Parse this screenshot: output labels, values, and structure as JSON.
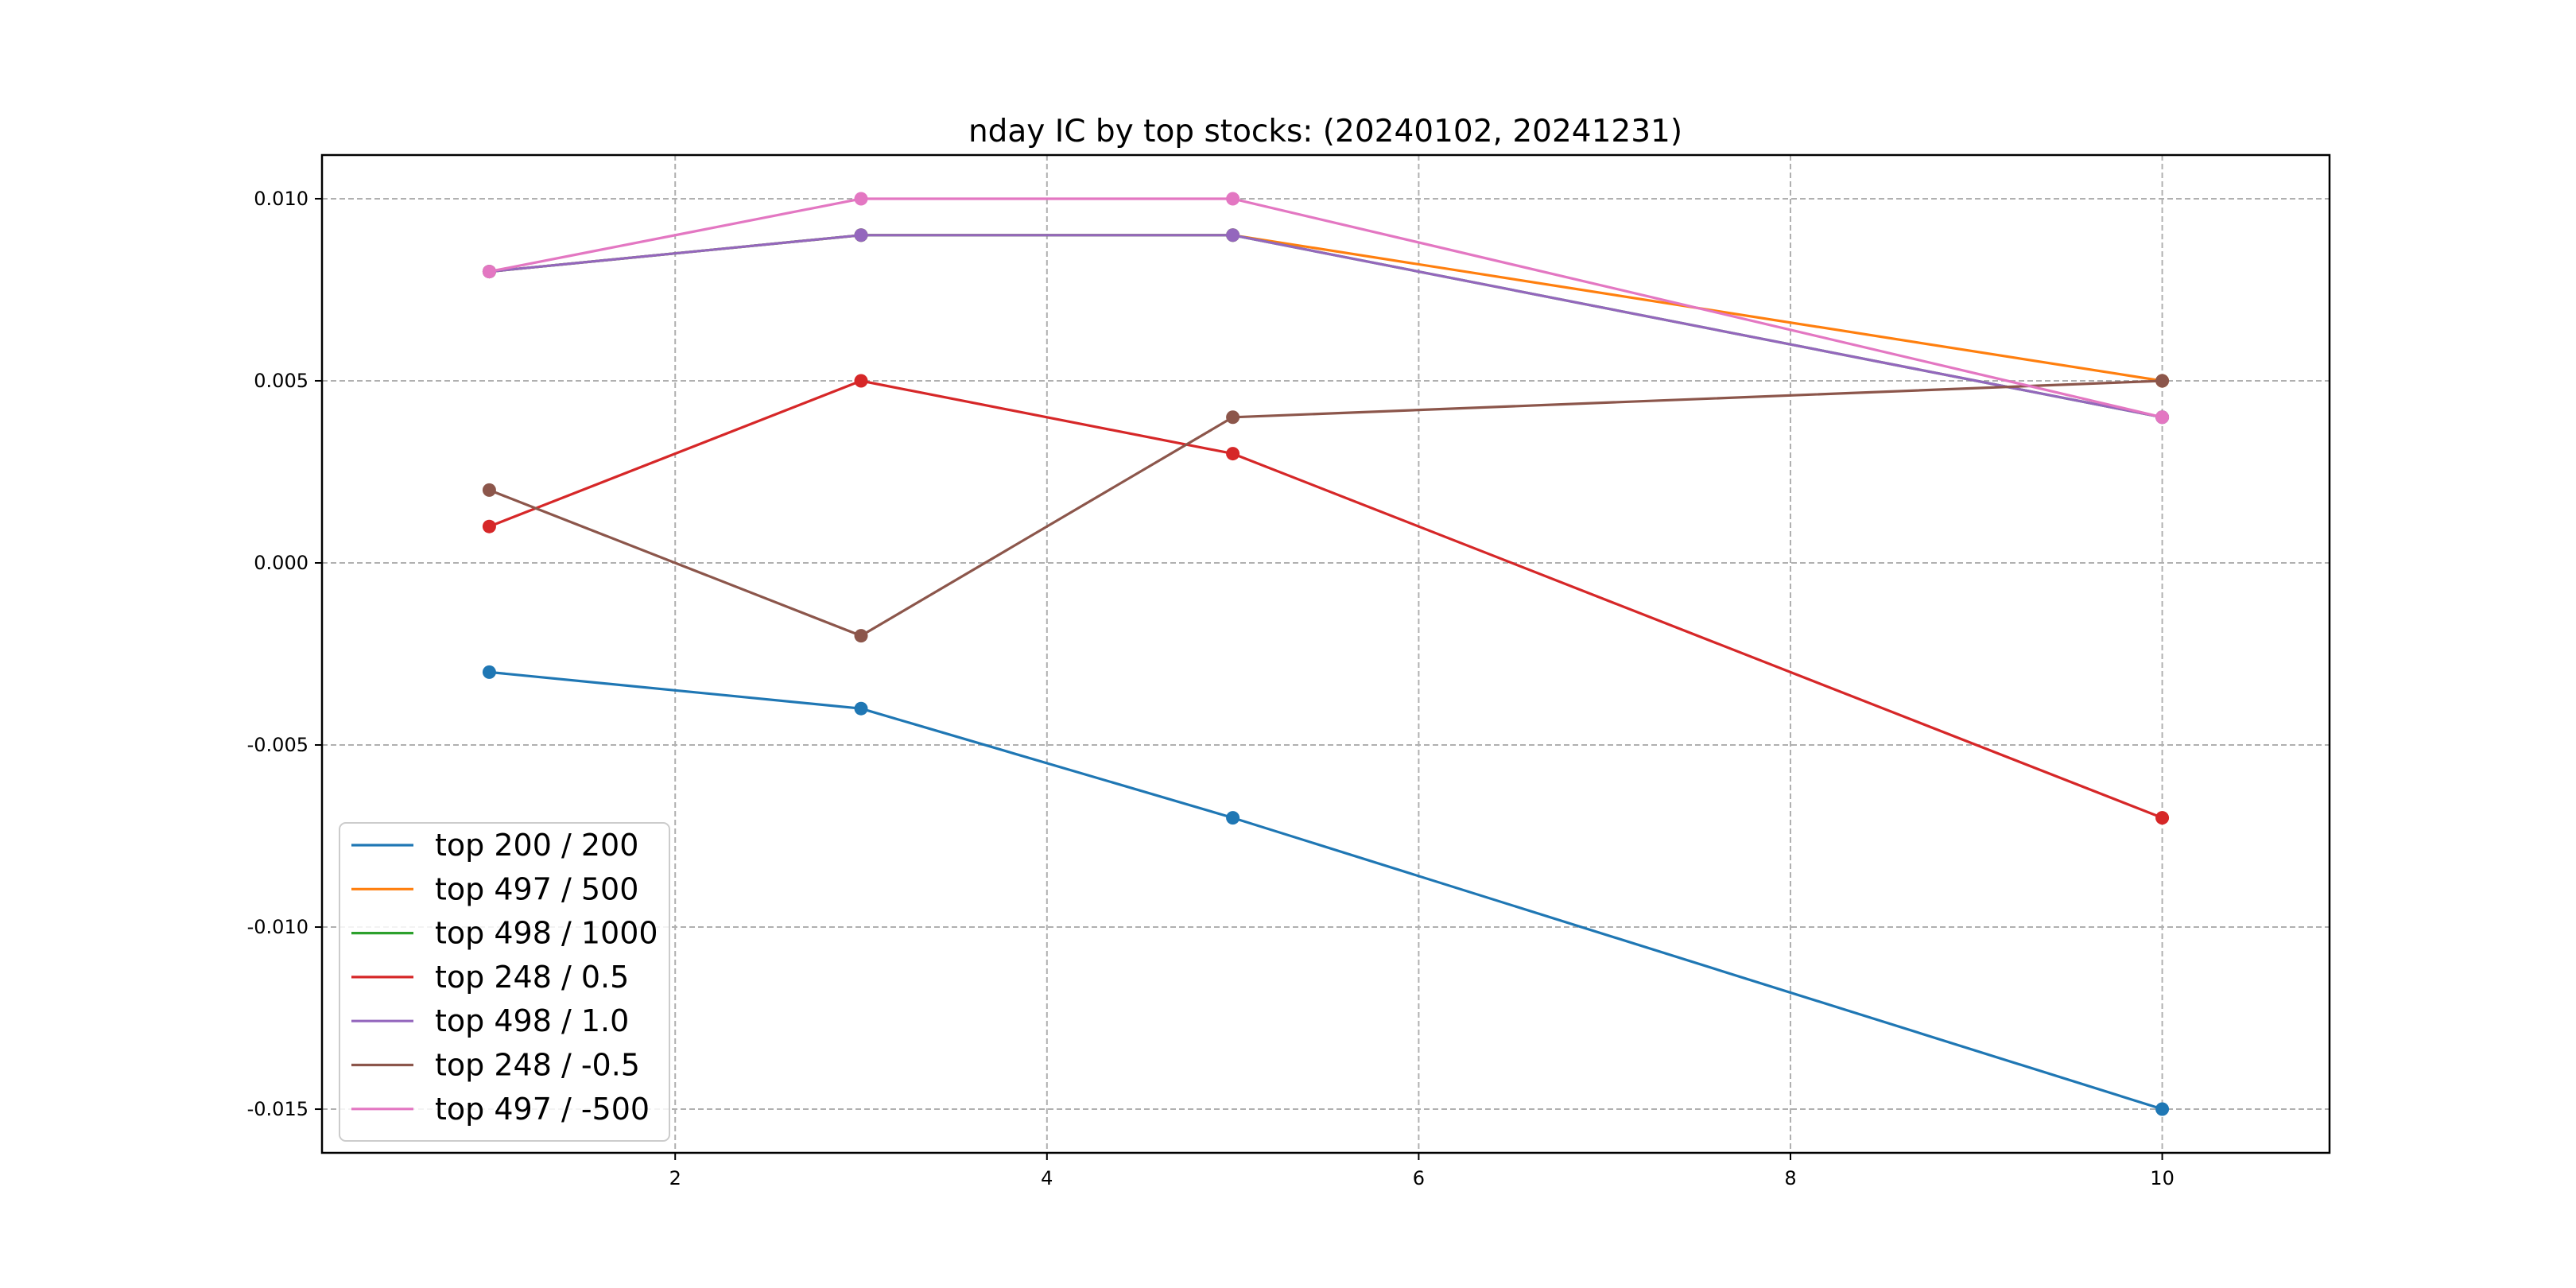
{
  "chart_data": {
    "type": "line",
    "title": "nday IC by top stocks: (20240102, 20241231)",
    "xlabel": "",
    "ylabel": "",
    "xlim": [
      0.1,
      10.9
    ],
    "ylim": [
      -0.0162,
      0.0112
    ],
    "x_ticks": [
      2,
      4,
      6,
      8,
      10
    ],
    "x_tick_labels": [
      "2",
      "4",
      "6",
      "8",
      "10"
    ],
    "y_ticks": [
      -0.015,
      -0.01,
      -0.005,
      0.0,
      0.005,
      0.01
    ],
    "y_tick_labels": [
      "-0.015",
      "-0.010",
      "-0.005",
      "0.000",
      "0.005",
      "0.010"
    ],
    "grid": true,
    "legend_location": "lower-left",
    "x": [
      1,
      3,
      5,
      10
    ],
    "series": [
      {
        "name": "top 200 / 200",
        "color": "#1f77b4",
        "values": [
          -0.003,
          -0.004,
          -0.007,
          -0.015
        ]
      },
      {
        "name": "top 497 / 500",
        "color": "#ff7f0e",
        "values": [
          0.008,
          0.009,
          0.009,
          0.005
        ]
      },
      {
        "name": "top 498 / 1000",
        "color": "#2ca02c",
        "values": [
          0.008,
          0.009,
          0.009,
          0.004
        ]
      },
      {
        "name": "top 248 / 0.5",
        "color": "#d62728",
        "values": [
          0.001,
          0.005,
          0.003,
          -0.007
        ]
      },
      {
        "name": "top 498 / 1.0",
        "color": "#9467bd",
        "values": [
          0.008,
          0.009,
          0.009,
          0.004
        ]
      },
      {
        "name": "top 248 / -0.5",
        "color": "#8c564b",
        "values": [
          0.002,
          -0.002,
          0.004,
          0.005
        ]
      },
      {
        "name": "top 497 / -500",
        "color": "#e377c2",
        "values": [
          0.008,
          0.01,
          0.01,
          0.004
        ]
      }
    ]
  }
}
